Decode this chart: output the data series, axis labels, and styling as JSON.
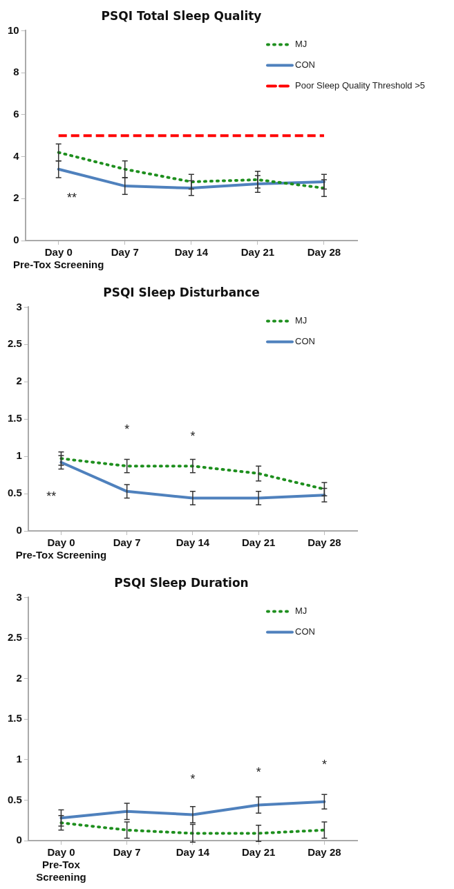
{
  "chart_data": [
    {
      "type": "line",
      "title": "PSQI Total Sleep Quality",
      "categories": [
        "Day 0\nPre-Tox Screening",
        "Day 7",
        "Day 14",
        "Day 21",
        "Day 28"
      ],
      "series": [
        {
          "name": "MJ",
          "color": "#1e8f1e",
          "line_style": "dotted",
          "values": [
            4.2,
            3.4,
            2.8,
            2.9,
            2.5
          ],
          "errors": [
            0.4,
            0.4,
            0.35,
            0.4,
            0.4
          ]
        },
        {
          "name": "CON",
          "color": "#4f81bd",
          "line_style": "solid",
          "values": [
            3.4,
            2.6,
            2.5,
            2.7,
            2.8
          ],
          "errors": [
            0.4,
            0.4,
            0.35,
            0.4,
            0.35
          ]
        }
      ],
      "ref_lines": [
        {
          "axis": "y",
          "value": 5,
          "label": "Poor Sleep Quality Threshold >5",
          "color": "#ff0000",
          "line_style": "dashed"
        }
      ],
      "ylim": [
        0,
        10
      ],
      "yticks": [
        0,
        2,
        4,
        6,
        8,
        10
      ],
      "grid": false,
      "legend": "top right",
      "marker": "none",
      "annotations": [
        "**"
      ]
    },
    {
      "type": "line",
      "title": "PSQI Sleep Disturbance",
      "categories": [
        "Day 0\nPre-Tox Screening",
        "Day 7",
        "Day 14",
        "Day 21",
        "Day 28"
      ],
      "series": [
        {
          "name": "MJ",
          "color": "#1e8f1e",
          "line_style": "dotted",
          "values": [
            0.97,
            0.87,
            0.87,
            0.77,
            0.56
          ],
          "errors": [
            0.09,
            0.09,
            0.09,
            0.1,
            0.09
          ]
        },
        {
          "name": "CON",
          "color": "#4f81bd",
          "line_style": "solid",
          "values": [
            0.92,
            0.53,
            0.44,
            0.44,
            0.48
          ],
          "errors": [
            0.09,
            0.09,
            0.09,
            0.09,
            0.09
          ]
        }
      ],
      "ylim": [
        0,
        3
      ],
      "yticks": [
        0,
        0.5,
        1,
        1.5,
        2,
        2.5,
        3
      ],
      "grid": false,
      "legend": "top right",
      "marker": "none",
      "annotations": [
        "**",
        "*",
        "*"
      ]
    },
    {
      "type": "line",
      "title": "PSQI Sleep Duration",
      "categories": [
        "Day 0\nPre-Tox\nScreening",
        "Day 7",
        "Day 14",
        "Day 21",
        "Day 28"
      ],
      "series": [
        {
          "name": "MJ",
          "color": "#1e8f1e",
          "line_style": "dotted",
          "values": [
            0.22,
            0.13,
            0.09,
            0.09,
            0.13
          ],
          "errors": [
            0.09,
            0.1,
            0.11,
            0.1,
            0.1
          ]
        },
        {
          "name": "CON",
          "color": "#4f81bd",
          "line_style": "solid",
          "values": [
            0.28,
            0.36,
            0.32,
            0.44,
            0.48
          ],
          "errors": [
            0.1,
            0.1,
            0.1,
            0.1,
            0.09
          ]
        }
      ],
      "ylim": [
        0,
        3
      ],
      "yticks": [
        0,
        0.5,
        1,
        1.5,
        2,
        2.5,
        3
      ],
      "grid": false,
      "legend": "top right",
      "marker": "none",
      "annotations": [
        "*",
        "*",
        "*"
      ]
    }
  ]
}
